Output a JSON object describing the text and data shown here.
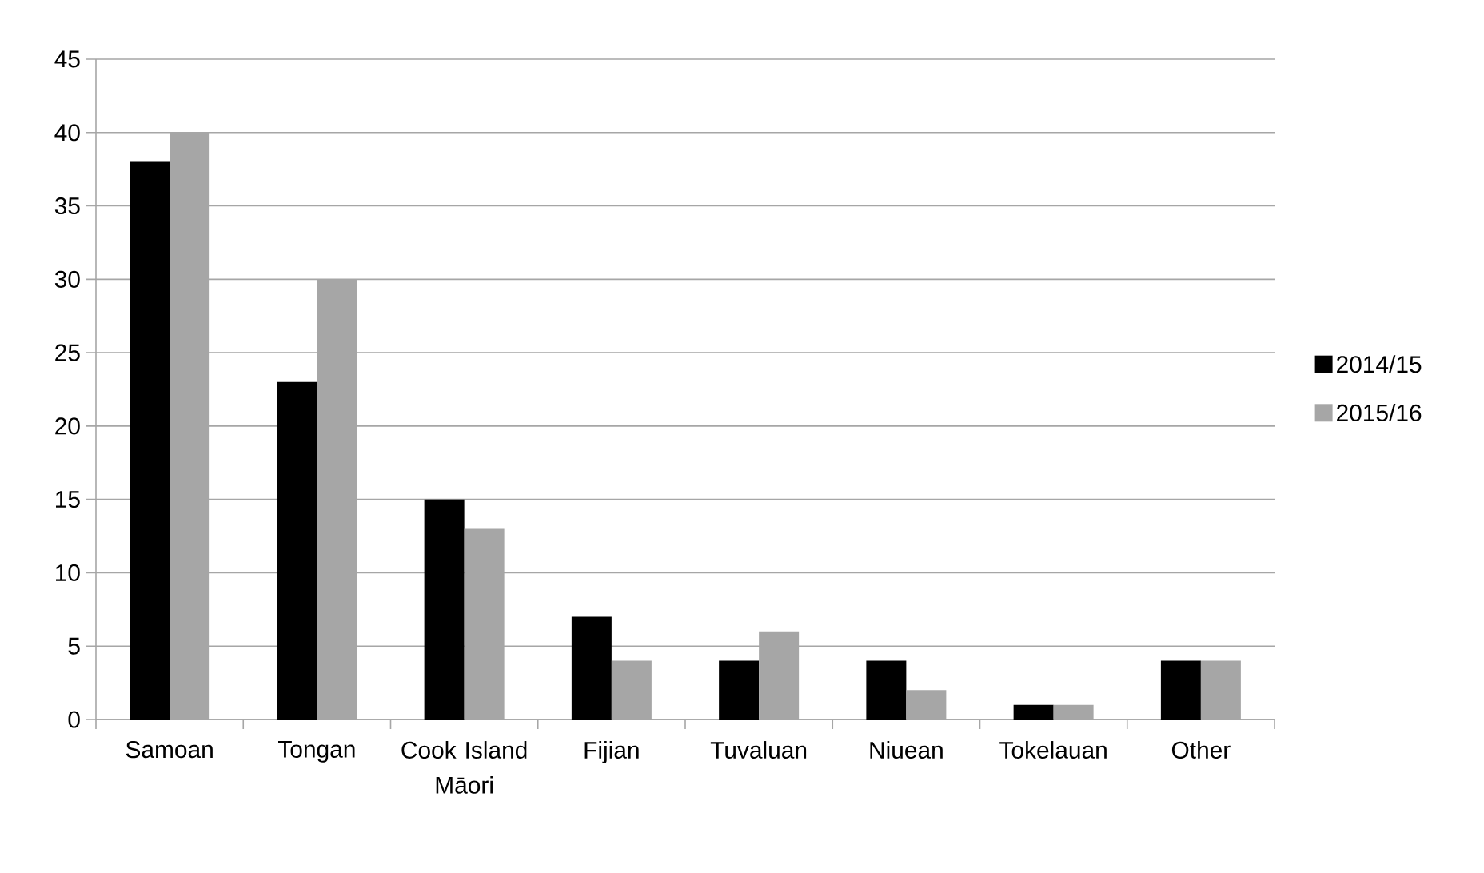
{
  "chart_data": {
    "type": "bar",
    "categories": [
      "Samoan",
      "Tongan",
      "Cook Island Māori",
      "Fijian",
      "Tuvaluan",
      "Niuean",
      "Tokelauan",
      "Other"
    ],
    "series": [
      {
        "name": "2014/15",
        "color": "#000000",
        "values": [
          38,
          23,
          15,
          7,
          4,
          4,
          1,
          4
        ]
      },
      {
        "name": "2015/16",
        "color": "#a6a6a6",
        "values": [
          40,
          30,
          13,
          4,
          6,
          2,
          1,
          4
        ]
      }
    ],
    "ylim": [
      0,
      45
    ],
    "yticks": [
      0,
      5,
      10,
      15,
      20,
      25,
      30,
      35,
      40,
      45
    ],
    "grid": "y",
    "legend": "right"
  }
}
